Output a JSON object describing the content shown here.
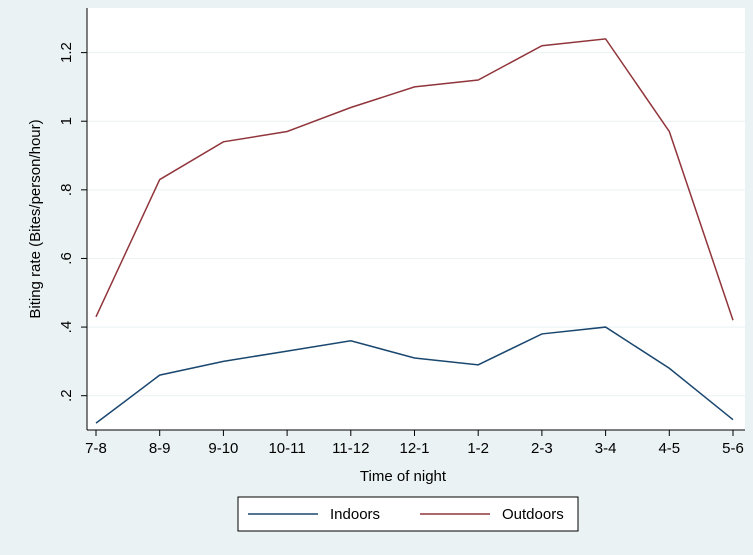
{
  "chart_data": {
    "type": "line",
    "x_label": "Time of night",
    "y_label": "Biting rate (Bites/person/hour)",
    "categories": [
      "7-8",
      "8-9",
      "9-10",
      "10-11",
      "11-12",
      "12-1",
      "1-2",
      "2-3",
      "3-4",
      "4-5",
      "5-6"
    ],
    "series": [
      {
        "name": "Indoors",
        "color": "#1a476f",
        "values": [
          0.12,
          0.26,
          0.3,
          0.33,
          0.36,
          0.31,
          0.29,
          0.38,
          0.4,
          0.28,
          0.13
        ]
      },
      {
        "name": "Outdoors",
        "color": "#90353b",
        "values": [
          0.43,
          0.83,
          0.94,
          0.97,
          1.04,
          1.1,
          1.12,
          1.22,
          1.24,
          0.97,
          0.42
        ]
      }
    ],
    "ylim": [
      0.1,
      1.33
    ],
    "yticks": [
      {
        "value": 0.2,
        "label": ".2"
      },
      {
        "value": 0.4,
        "label": ".4"
      },
      {
        "value": 0.6,
        "label": ".6"
      },
      {
        "value": 0.8,
        "label": ".8"
      },
      1,
      1.2
    ],
    "grid": true,
    "legend": "bottom"
  }
}
